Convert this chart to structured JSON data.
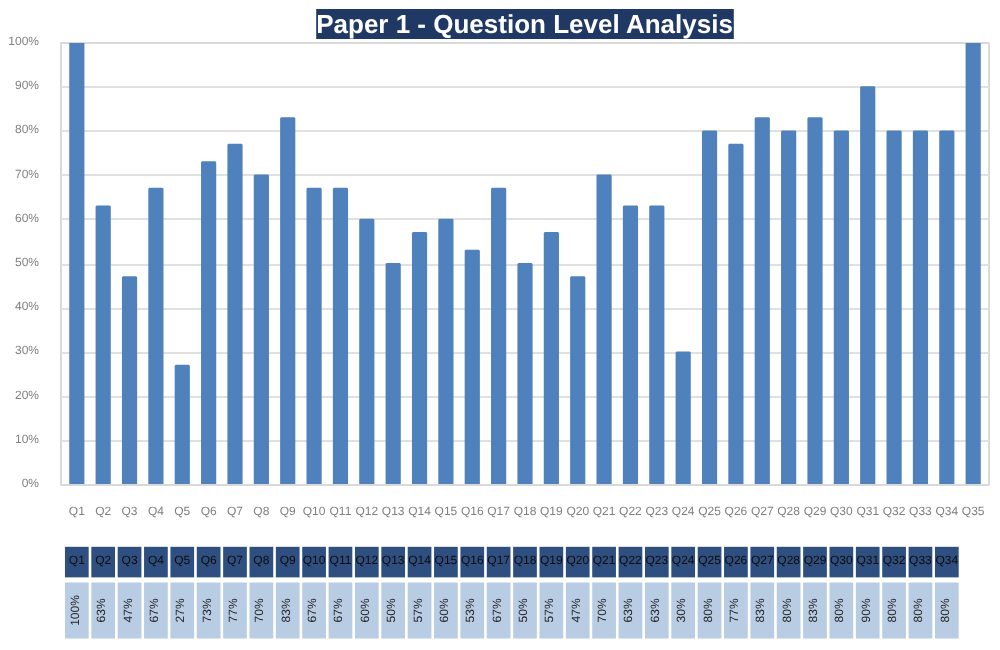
{
  "chart_data": {
    "type": "bar",
    "title": "Paper 1 - Question Level Analysis",
    "categories": [
      "Q1",
      "Q2",
      "Q3",
      "Q4",
      "Q5",
      "Q6",
      "Q7",
      "Q8",
      "Q9",
      "Q10",
      "Q11",
      "Q12",
      "Q13",
      "Q14",
      "Q15",
      "Q16",
      "Q17",
      "Q18",
      "Q19",
      "Q20",
      "Q21",
      "Q22",
      "Q23",
      "Q24",
      "Q25",
      "Q26",
      "Q27",
      "Q28",
      "Q29",
      "Q30",
      "Q31",
      "Q32",
      "Q33",
      "Q34",
      "Q35"
    ],
    "values": [
      100,
      63,
      47,
      67,
      27,
      73,
      77,
      70,
      83,
      67,
      67,
      60,
      50,
      57,
      60,
      53,
      67,
      50,
      57,
      47,
      70,
      63,
      63,
      30,
      80,
      77,
      83,
      80,
      83,
      80,
      90,
      80,
      80,
      80,
      100
    ],
    "value_labels": [
      "100%",
      "63%",
      "47%",
      "67%",
      "27%",
      "73%",
      "77%",
      "70%",
      "83%",
      "67%",
      "67%",
      "60%",
      "50%",
      "57%",
      "60%",
      "53%",
      "67%",
      "50%",
      "57%",
      "47%",
      "70%",
      "63%",
      "63%",
      "30%",
      "80%",
      "77%",
      "83%",
      "80%",
      "83%",
      "80%",
      "90%",
      "80%",
      "80%",
      "80%",
      null
    ],
    "color": "#4f81bd",
    "ylim": [
      0,
      100
    ],
    "yticks": [
      {
        "value": 0,
        "label": "0%"
      },
      {
        "value": 10,
        "label": "10%"
      },
      {
        "value": 20,
        "label": "20%"
      },
      {
        "value": 30,
        "label": "30%"
      },
      {
        "value": 40,
        "label": "40%"
      },
      {
        "value": 50,
        "label": "50%"
      },
      {
        "value": 60,
        "label": "60%"
      },
      {
        "value": 70,
        "label": "70%"
      },
      {
        "value": 80,
        "label": "80%"
      },
      {
        "value": 90,
        "label": "90%"
      },
      {
        "value": 100,
        "label": "100%"
      }
    ],
    "grid": "y"
  }
}
